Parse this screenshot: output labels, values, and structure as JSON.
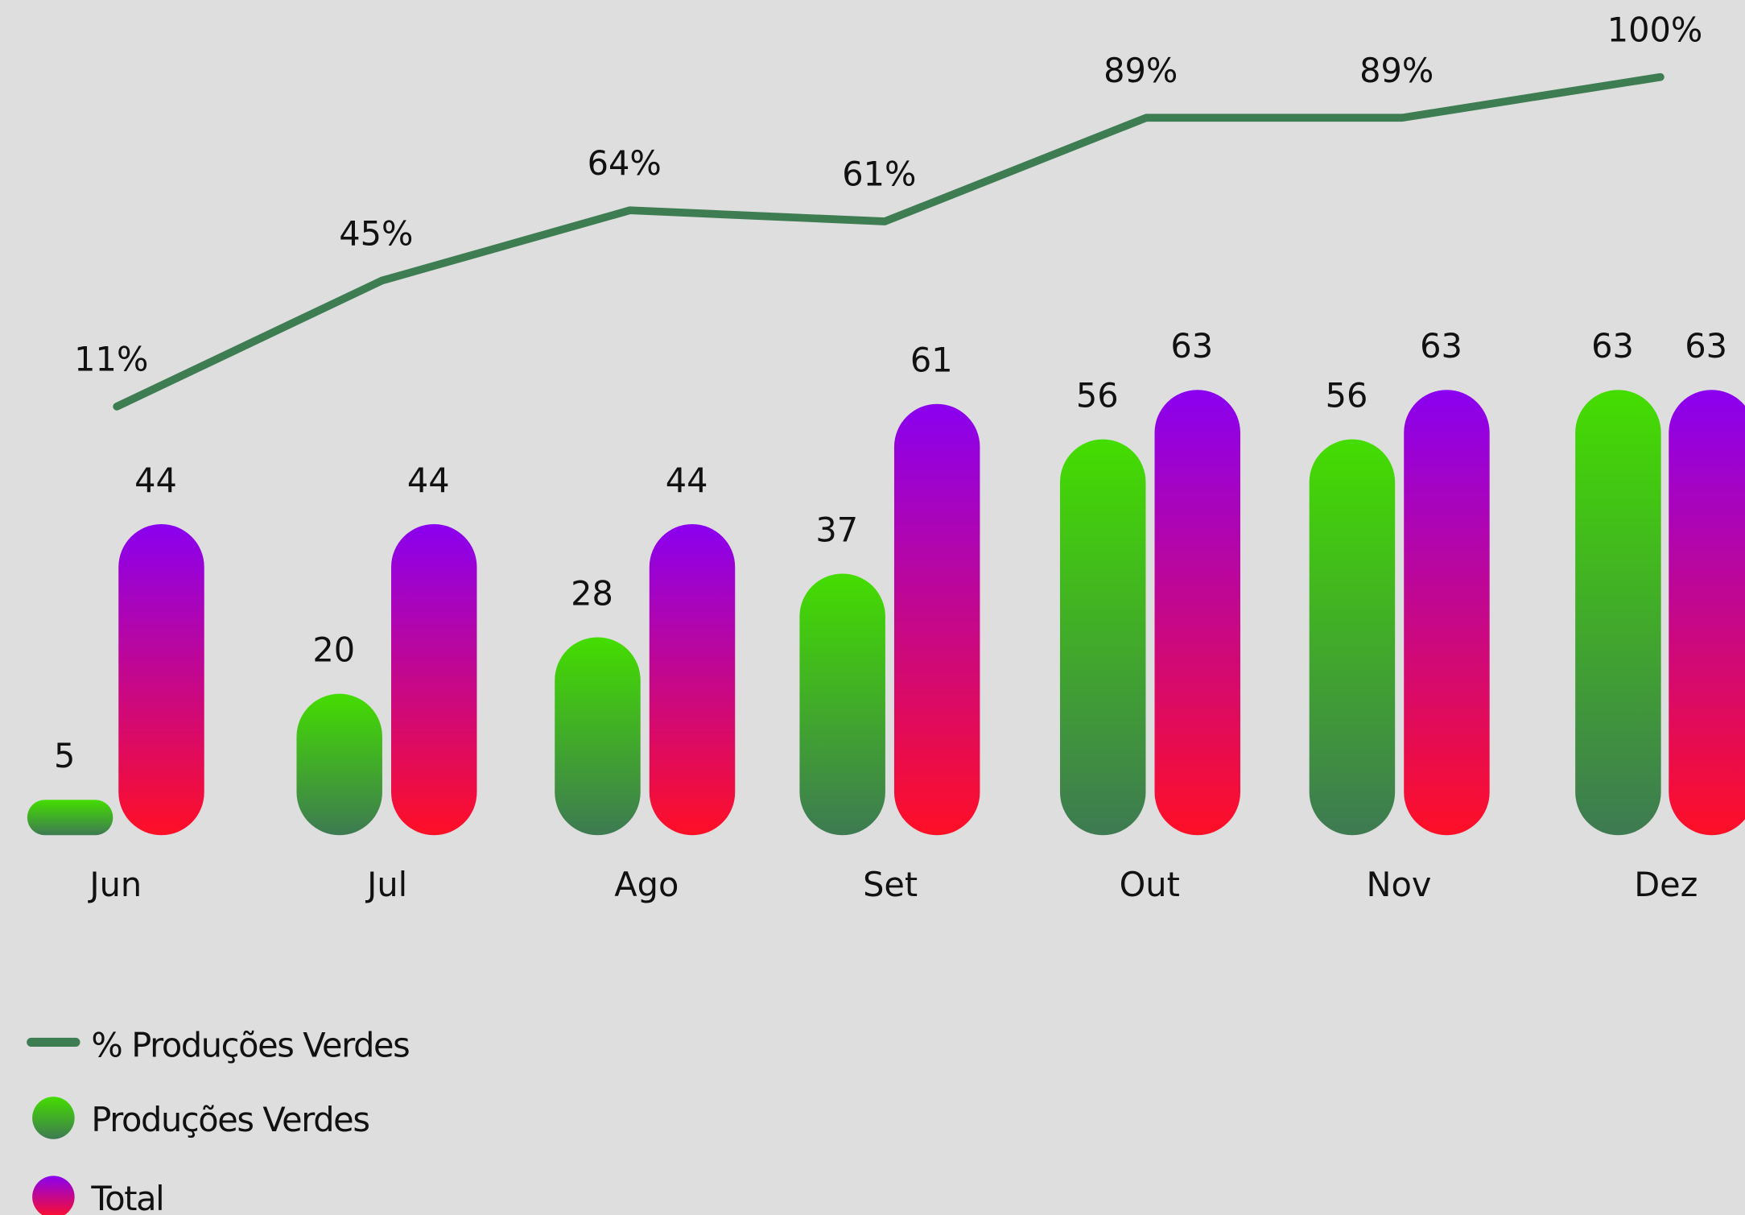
{
  "chart_data": {
    "type": "bar-line",
    "categories": [
      "Jun",
      "Jul",
      "Ago",
      "Set",
      "Out",
      "Nov",
      "Dez"
    ],
    "series": [
      {
        "name": "Produções Verdes",
        "type": "bar",
        "gradient": [
          "#44dd00",
          "#3e7a52"
        ],
        "values": [
          5,
          20,
          28,
          37,
          56,
          56,
          63
        ]
      },
      {
        "name": "Total",
        "type": "bar",
        "gradient": [
          "#8a00f0",
          "#ff0f26"
        ],
        "values": [
          44,
          44,
          44,
          61,
          63,
          63,
          63
        ]
      },
      {
        "name": "% Produções Verdes",
        "type": "line",
        "color": "#3e7d52",
        "values": [
          11,
          45,
          64,
          61,
          89,
          89,
          100
        ],
        "value_labels": [
          "11%",
          "45%",
          "64%",
          "61%",
          "89%",
          "89%",
          "100%"
        ]
      }
    ]
  }
}
